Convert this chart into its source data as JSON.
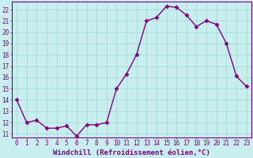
{
  "x": [
    0,
    1,
    2,
    3,
    4,
    5,
    6,
    7,
    8,
    9,
    10,
    11,
    12,
    13,
    14,
    15,
    16,
    17,
    18,
    19,
    20,
    21,
    22,
    23
  ],
  "y": [
    14.0,
    12.0,
    12.2,
    11.5,
    11.5,
    11.7,
    10.8,
    11.8,
    11.8,
    12.0,
    15.0,
    16.3,
    18.0,
    21.0,
    21.3,
    22.3,
    22.2,
    21.5,
    20.5,
    21.0,
    20.7,
    19.0,
    16.1,
    15.2
  ],
  "line_color": "#800080",
  "marker": "D",
  "marker_size": 2.5,
  "bg_color": "#c8eef0",
  "grid_color": "#a0d8d0",
  "xlabel": "Windchill (Refroidissement éolien,°C)",
  "xlim_min": -0.5,
  "xlim_max": 23.5,
  "ylim_min": 10.7,
  "ylim_max": 22.7,
  "yticks": [
    11,
    12,
    13,
    14,
    15,
    16,
    17,
    18,
    19,
    20,
    21,
    22
  ],
  "xticks": [
    0,
    1,
    2,
    3,
    4,
    5,
    6,
    7,
    8,
    9,
    10,
    11,
    12,
    13,
    14,
    15,
    16,
    17,
    18,
    19,
    20,
    21,
    22,
    23
  ],
  "tick_color": "#800080",
  "label_color": "#800080",
  "tick_fontsize": 5.5,
  "xlabel_fontsize": 6.5,
  "linewidth": 1.0,
  "spine_color": "#800080"
}
